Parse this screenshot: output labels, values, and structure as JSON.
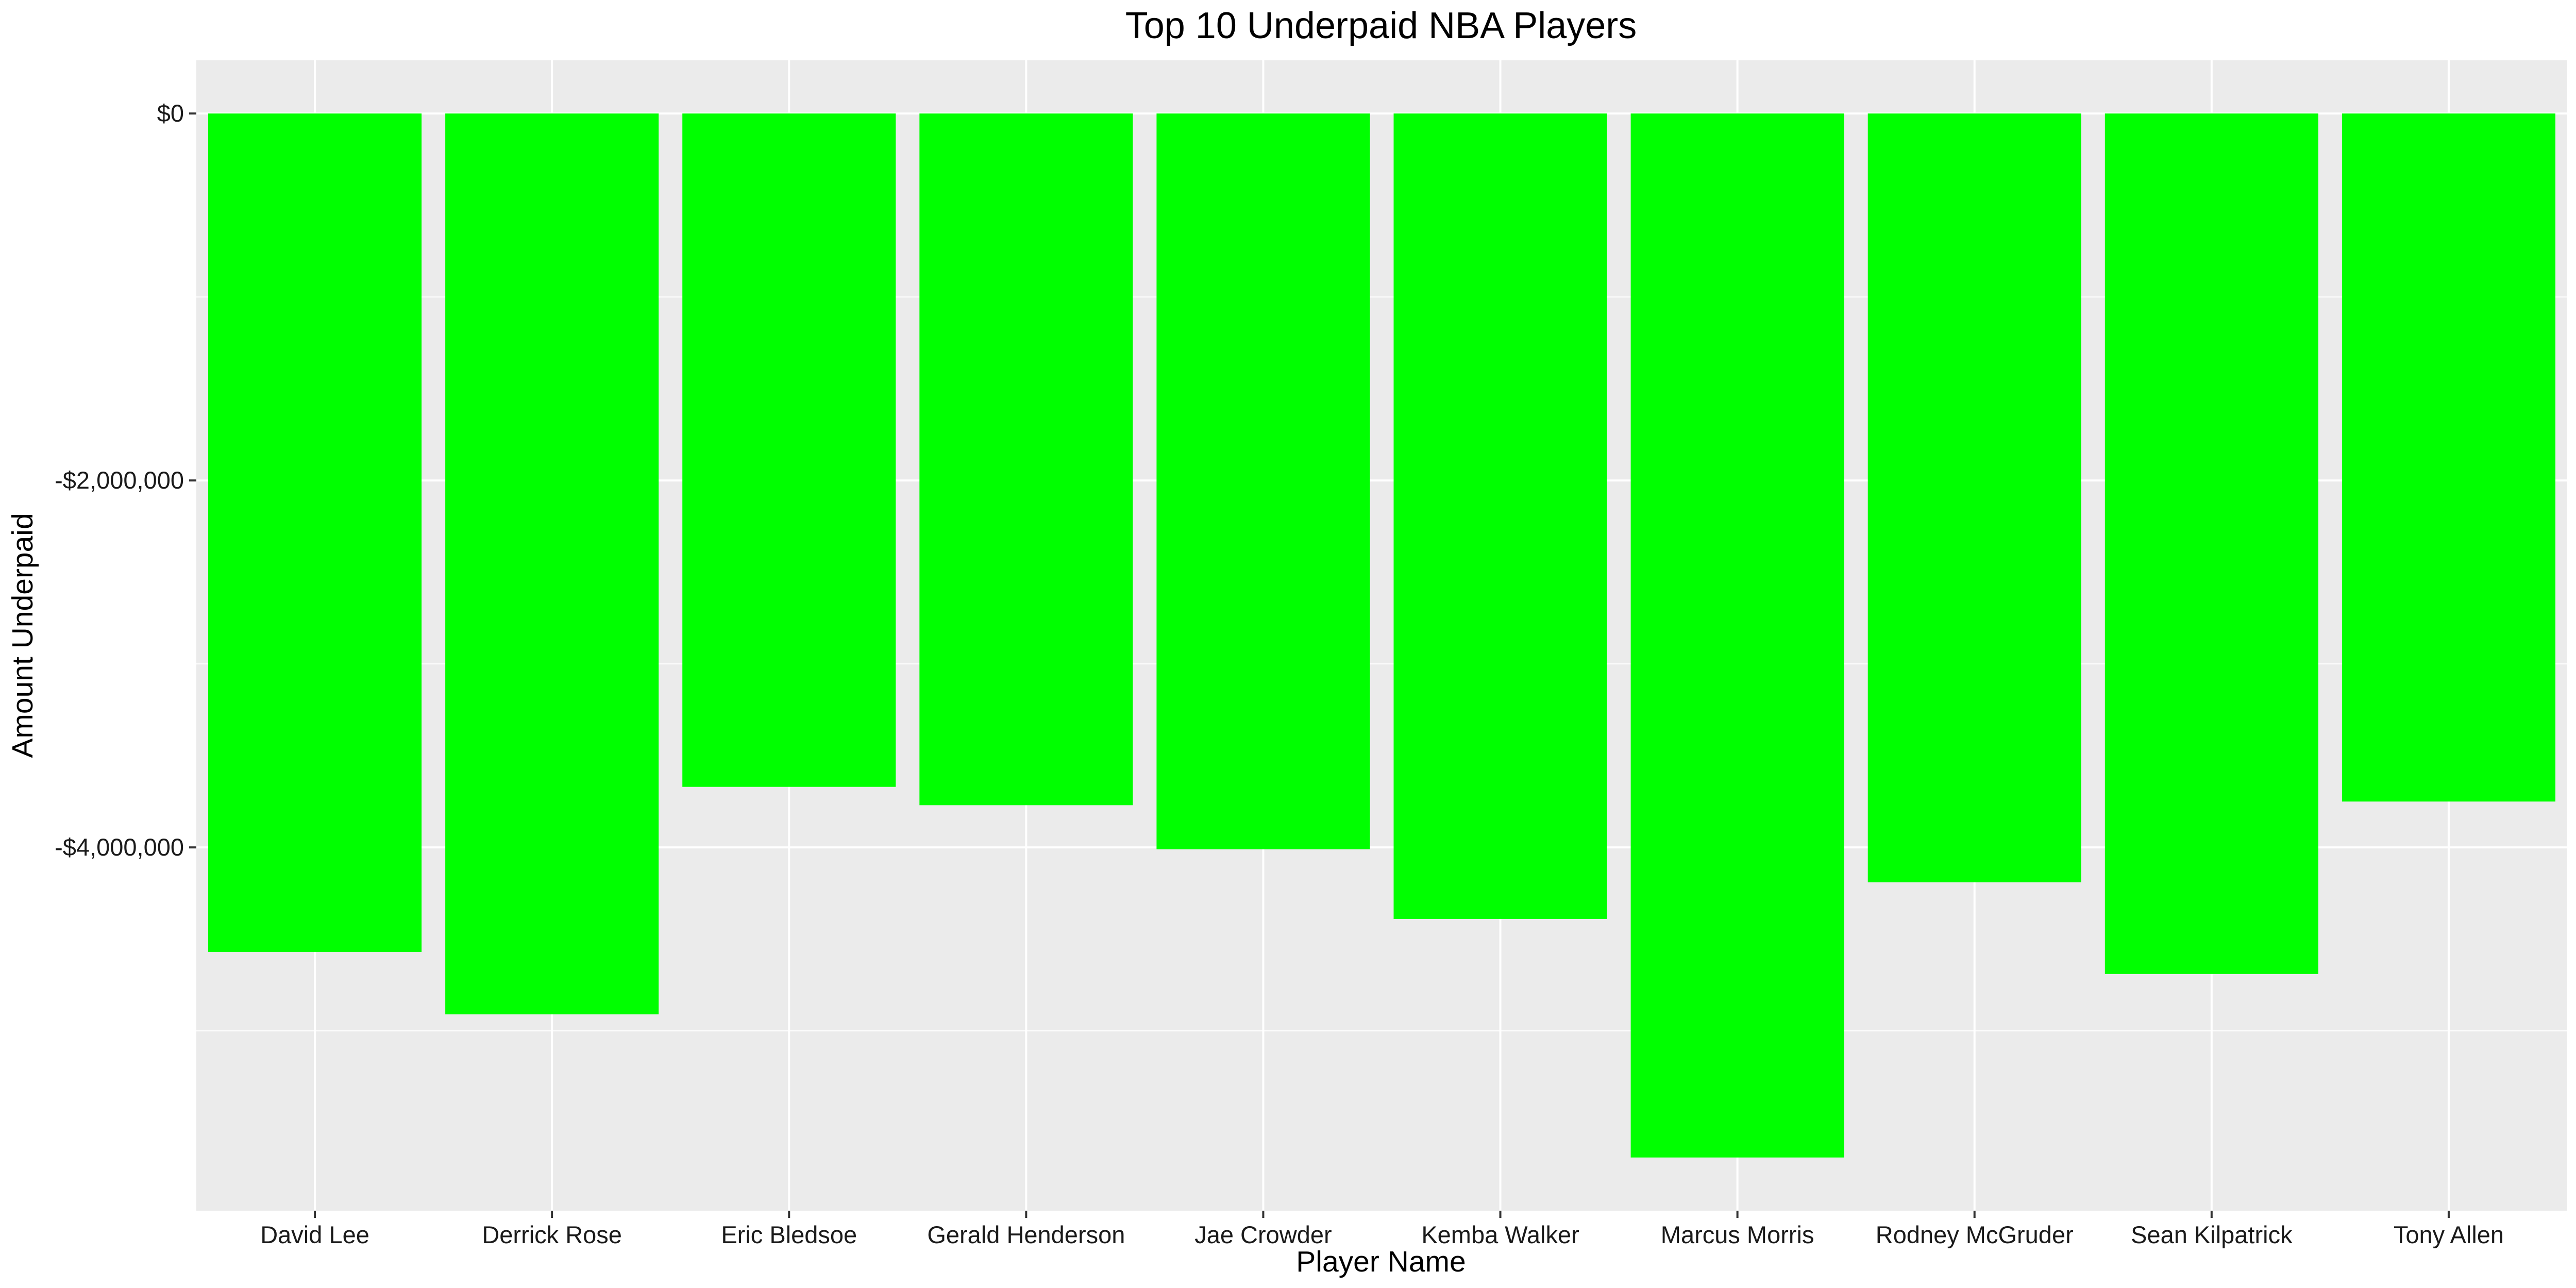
{
  "chart_data": {
    "type": "bar",
    "title": "Top 10 Underpaid NBA Players",
    "xlabel": "Player Name",
    "ylabel": "Amount Underpaid",
    "categories": [
      "David Lee",
      "Derrick Rose",
      "Eric Bledsoe",
      "Gerald Henderson",
      "Jae Crowder",
      "Kemba Walker",
      "Marcus Morris",
      "Rodney McGruder",
      "Sean Kilpatrick",
      "Tony Allen"
    ],
    "values": [
      -4570000,
      -4910000,
      -3670000,
      -3770000,
      -4010000,
      -4390000,
      -5690000,
      -4190000,
      -4690000,
      -3750000
    ],
    "ylim": [
      -5980000,
      290000
    ],
    "y_ticks": [
      0,
      -2000000,
      -4000000
    ],
    "y_tick_labels": [
      "$0",
      "-$2,000,000",
      "-$4,000,000"
    ],
    "y_minor_ticks": [
      -1000000,
      -3000000,
      -5000000
    ],
    "grid": true,
    "legend": "none",
    "colors": {
      "bar": "#00FF00",
      "panel_background": "#EBEBEB",
      "grid": "#FFFFFF",
      "text": "#000000",
      "tick_text": "#1A1A1A",
      "axis_tick": "#333333"
    }
  }
}
